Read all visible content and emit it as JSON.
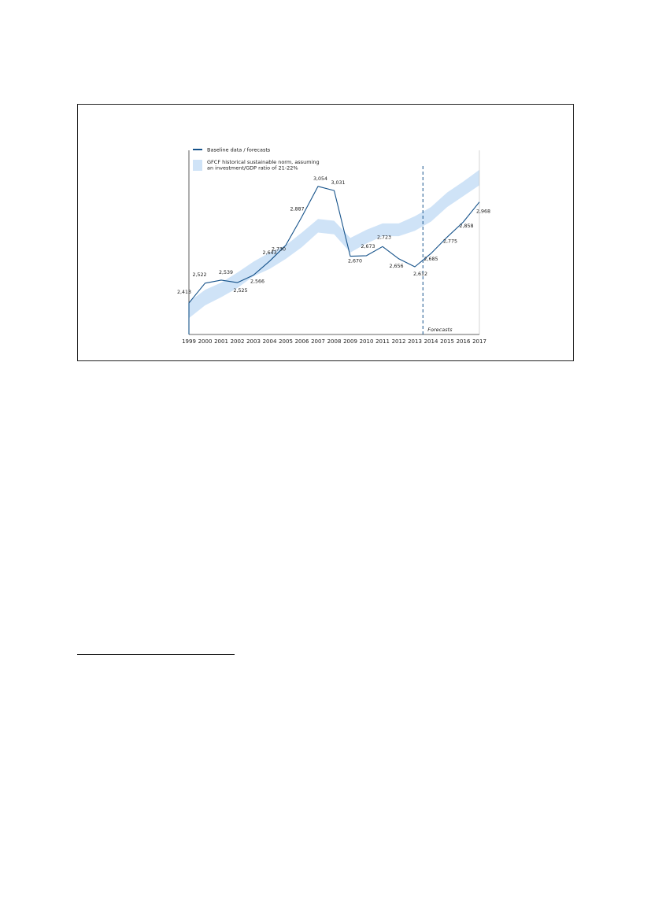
{
  "chart_data": {
    "type": "line",
    "x": [
      "1999",
      "2000",
      "2001",
      "2002",
      "2003",
      "2004",
      "2005",
      "2006",
      "2007",
      "2008",
      "2009",
      "2010",
      "2011",
      "2012",
      "2013",
      "2014",
      "2015",
      "2016",
      "2017"
    ],
    "series": [
      {
        "name": "Baseline data / forecasts",
        "values": [
          2413,
          2522,
          2539,
          2525,
          2566,
          2643,
          2730,
          2887,
          3054,
          3031,
          2670,
          2673,
          2723,
          2656,
          2612,
          2685,
          2775,
          2858,
          2968
        ],
        "labels": [
          "2,413",
          "2,522",
          "2,539",
          "2,525",
          "2,566",
          "2,643",
          "2,730",
          "2,887",
          "3,054",
          "3,031",
          "2,670",
          "2,673",
          "2,723",
          "2,656",
          "2,612",
          "2,685",
          "2,775",
          "2,858",
          "2,968"
        ]
      }
    ],
    "band": {
      "name": "GFCF historical sustainable norm, assuming an investment/GDP ratio of 21-22%",
      "lower": [
        2330,
        2400,
        2445,
        2495,
        2560,
        2600,
        2655,
        2720,
        2800,
        2790,
        2690,
        2740,
        2780,
        2780,
        2810,
        2860,
        2940,
        3000,
        3060
      ],
      "upper": [
        2420,
        2485,
        2525,
        2580,
        2640,
        2690,
        2730,
        2800,
        2875,
        2865,
        2770,
        2815,
        2850,
        2850,
        2890,
        2940,
        3020,
        3080,
        3145
      ]
    },
    "ylim": [
      2240,
      3200
    ],
    "forecast_start_x": 14.5,
    "annotation": "Forecasts",
    "legend_placement": "top-left",
    "grid": false,
    "title": "",
    "xlabel": "",
    "ylabel": ""
  },
  "colors": {
    "line": "#15528a",
    "band": "#cfe3f7",
    "forecast_line": "#15528a",
    "text": "#1a1a1a"
  }
}
